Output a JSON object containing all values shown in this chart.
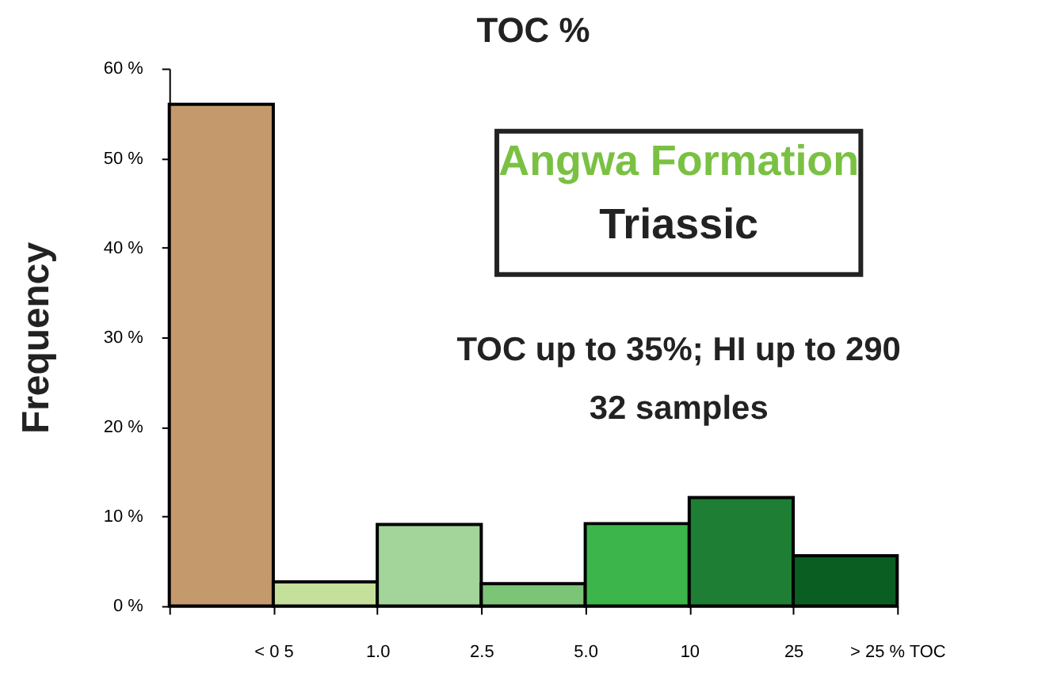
{
  "chart_data": {
    "type": "bar",
    "title": "TOC %",
    "ylabel": "Frequency",
    "categories": [
      "< 0 5",
      "1.0",
      "2.5",
      "5.0",
      "10",
      "25",
      "> 25 % TOC"
    ],
    "values": [
      56,
      2.7,
      9.1,
      2.5,
      9.2,
      12.1,
      5.6
    ],
    "colors": [
      "#c49a6c",
      "#c5e09b",
      "#a3d49a",
      "#7cc576",
      "#3cb54a",
      "#1e7e34",
      "#0b5e22"
    ],
    "ylim": [
      0,
      60
    ],
    "yticks": [
      {
        "value": 0,
        "label": "0 %"
      },
      {
        "value": 10,
        "label": "10 %"
      },
      {
        "value": 20,
        "label": "20 %"
      },
      {
        "value": 30,
        "label": "30 %"
      },
      {
        "value": 40,
        "label": "40 %"
      },
      {
        "value": 50,
        "label": "50 %"
      },
      {
        "value": 60,
        "label": "60 %"
      }
    ],
    "grid": false,
    "annotations": [
      "Angwa Formation",
      "Triassic",
      "TOC up to 35%; HI up to 290",
      "32 samples"
    ]
  }
}
